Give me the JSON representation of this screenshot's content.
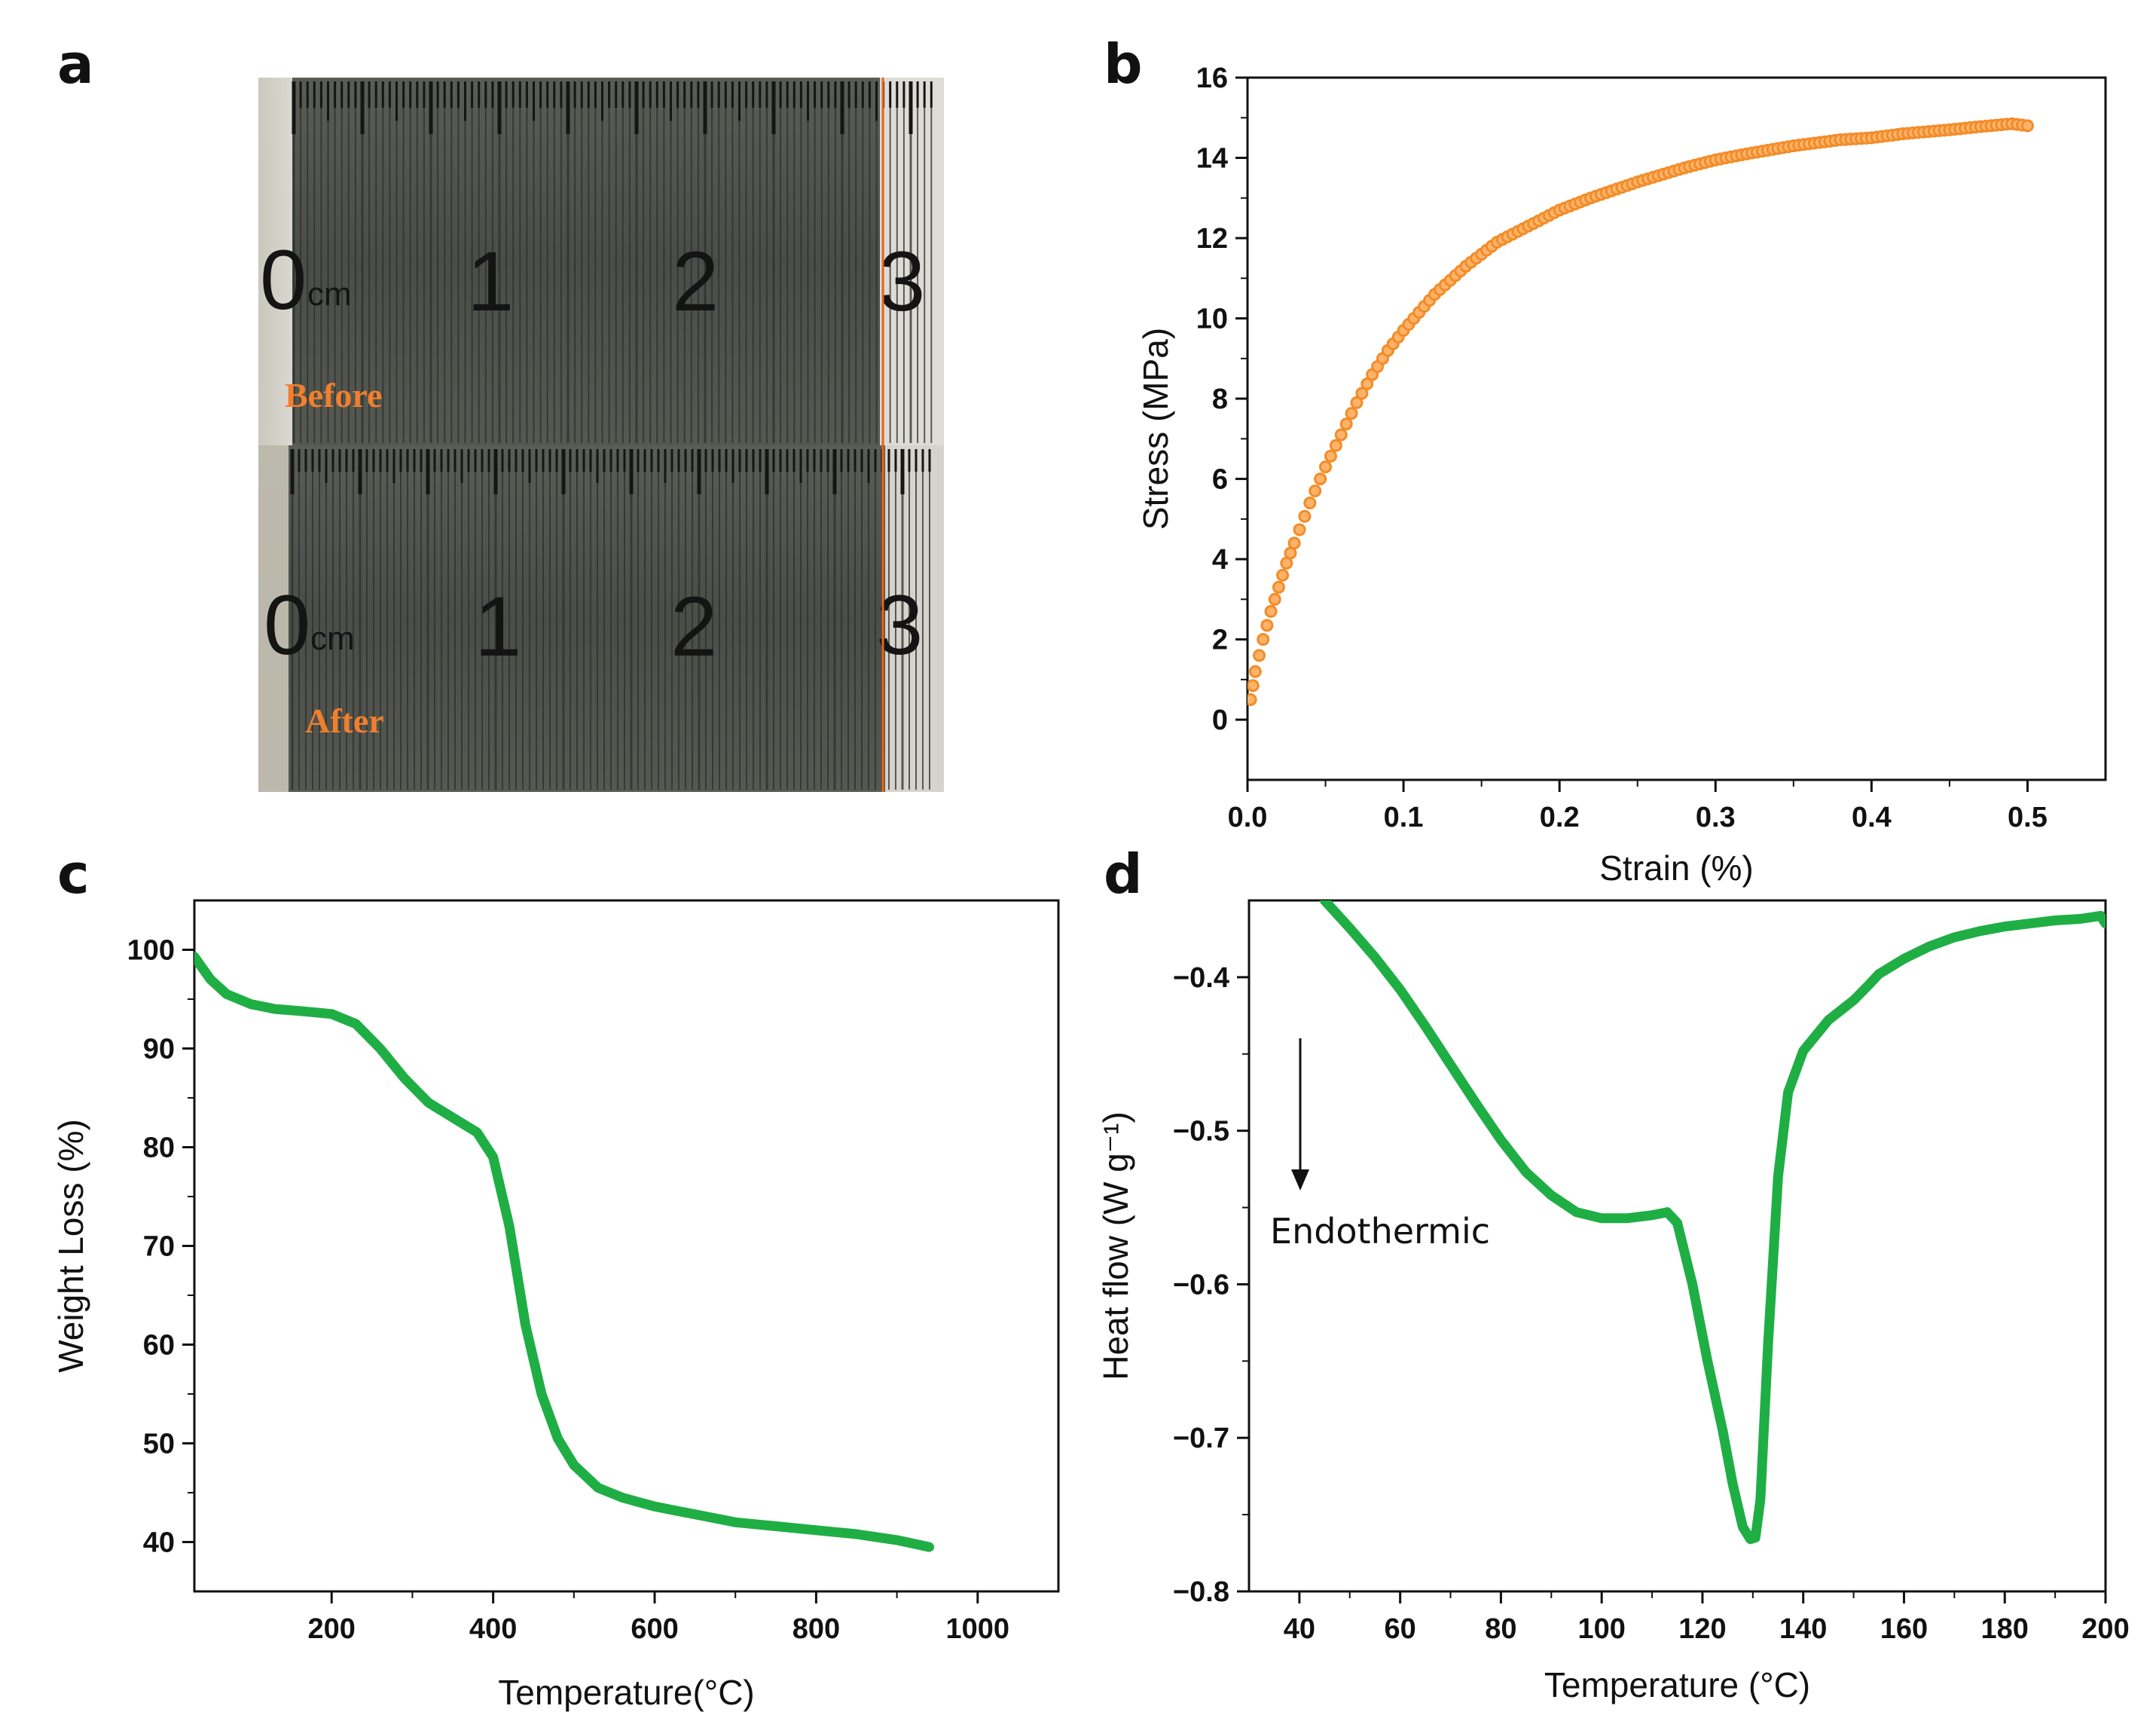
{
  "panels": {
    "a": {
      "letter": "a",
      "ruler_numbers": [
        "1",
        "2",
        "3"
      ],
      "ruler_zero": "0",
      "ruler_unit": "cm",
      "before_label": "Before",
      "after_label": "After",
      "label_color": "#f07f2e",
      "marker_color": "#e8661a"
    },
    "b": {
      "letter": "b"
    },
    "c": {
      "letter": "c"
    },
    "d": {
      "letter": "d",
      "annotation": "Endothermic"
    }
  },
  "chart_data": [
    {
      "id": "b",
      "type": "scatter",
      "xlabel": "Strain (%)",
      "ylabel": "Stress (MPa)",
      "xlim": [
        0,
        0.55
      ],
      "ylim": [
        -1.5,
        16
      ],
      "xticks": [
        0.0,
        0.1,
        0.2,
        0.3,
        0.4,
        0.5
      ],
      "xtick_labels": [
        "0.0",
        "0.1",
        "0.2",
        "0.3",
        "0.4",
        "0.5"
      ],
      "yticks": [
        0,
        2,
        4,
        6,
        8,
        10,
        12,
        14,
        16
      ],
      "ytick_labels": [
        "0",
        "2",
        "4",
        "6",
        "8",
        "10",
        "12",
        "14",
        "16"
      ],
      "color": "#f28c28",
      "series": [
        {
          "x": [
            0.002,
            0.005,
            0.01,
            0.015,
            0.02,
            0.025,
            0.03,
            0.04,
            0.05,
            0.06,
            0.07,
            0.08,
            0.09,
            0.1,
            0.12,
            0.14,
            0.16,
            0.18,
            0.2,
            0.22,
            0.25,
            0.28,
            0.3,
            0.32,
            0.35,
            0.38,
            0.4,
            0.42,
            0.45,
            0.47,
            0.49,
            0.5
          ],
          "y": [
            0.5,
            1.2,
            2.0,
            2.7,
            3.3,
            3.9,
            4.4,
            5.4,
            6.3,
            7.1,
            7.9,
            8.6,
            9.2,
            9.7,
            10.6,
            11.3,
            11.9,
            12.3,
            12.7,
            13.0,
            13.4,
            13.75,
            13.95,
            14.1,
            14.3,
            14.45,
            14.5,
            14.6,
            14.7,
            14.78,
            14.85,
            14.8
          ]
        }
      ]
    },
    {
      "id": "c",
      "type": "line",
      "xlabel": "Temperature(°C)",
      "ylabel": "Weight Loss (%)",
      "xlim": [
        30,
        1100
      ],
      "ylim": [
        35,
        105
      ],
      "xticks": [
        200,
        400,
        600,
        800,
        1000
      ],
      "xtick_labels": [
        "200",
        "400",
        "600",
        "800",
        "1000"
      ],
      "yticks": [
        40,
        50,
        60,
        70,
        80,
        90,
        100
      ],
      "ytick_labels": [
        "40",
        "50",
        "60",
        "70",
        "80",
        "90",
        "100"
      ],
      "color": "#1fae44",
      "series": [
        {
          "x": [
            30,
            50,
            70,
            100,
            130,
            160,
            200,
            230,
            260,
            290,
            320,
            350,
            380,
            400,
            420,
            440,
            460,
            480,
            500,
            530,
            560,
            600,
            650,
            700,
            750,
            800,
            850,
            900,
            940
          ],
          "y": [
            99.3,
            97.0,
            95.5,
            94.5,
            94.0,
            93.8,
            93.5,
            92.5,
            90.0,
            87.0,
            84.5,
            83.0,
            81.5,
            79.0,
            72.0,
            62.0,
            55.0,
            50.5,
            47.8,
            45.5,
            44.5,
            43.6,
            42.8,
            42.0,
            41.6,
            41.2,
            40.8,
            40.2,
            39.5
          ]
        }
      ]
    },
    {
      "id": "d",
      "type": "line",
      "xlabel": "Temperature (°C)",
      "ylabel": "Heat flow (W g⁻¹)",
      "xlim": [
        30,
        200
      ],
      "ylim": [
        -0.8,
        -0.35
      ],
      "xticks": [
        40,
        60,
        80,
        100,
        120,
        140,
        160,
        180,
        200
      ],
      "xtick_labels": [
        "40",
        "60",
        "80",
        "100",
        "120",
        "140",
        "160",
        "180",
        "200"
      ],
      "yticks": [
        -0.8,
        -0.7,
        -0.6,
        -0.5,
        -0.4
      ],
      "ytick_labels": [
        "−0.8",
        "−0.7",
        "−0.6",
        "−0.5",
        "−0.4"
      ],
      "color": "#1fae44",
      "series": [
        {
          "x": [
            45,
            50,
            55,
            60,
            65,
            70,
            75,
            80,
            85,
            90,
            95,
            100,
            105,
            110,
            113,
            115,
            118,
            121,
            124,
            126,
            128,
            129.5,
            130.5,
            131.5,
            133,
            135,
            137,
            140,
            145,
            150,
            153,
            155,
            160,
            165,
            170,
            175,
            180,
            185,
            190,
            195,
            199,
            200
          ],
          "y": [
            -0.35,
            -0.368,
            -0.387,
            -0.408,
            -0.432,
            -0.457,
            -0.482,
            -0.506,
            -0.527,
            -0.542,
            -0.553,
            -0.557,
            -0.557,
            -0.555,
            -0.553,
            -0.56,
            -0.6,
            -0.65,
            -0.695,
            -0.73,
            -0.758,
            -0.766,
            -0.765,
            -0.74,
            -0.64,
            -0.53,
            -0.475,
            -0.448,
            -0.428,
            -0.415,
            -0.405,
            -0.398,
            -0.388,
            -0.38,
            -0.374,
            -0.37,
            -0.367,
            -0.365,
            -0.363,
            -0.362,
            -0.36,
            -0.365
          ]
        }
      ]
    }
  ]
}
